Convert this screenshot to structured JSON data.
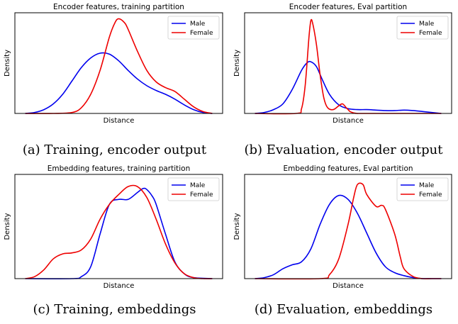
{
  "colors": {
    "male": "#0000ee",
    "female": "#ee0000"
  },
  "panels": [
    {
      "caption": "(a) Training, encoder output",
      "chart_data": {
        "type": "line",
        "title": "Encoder features, training partition",
        "xlabel": "Distance",
        "ylabel": "Density",
        "legend": "top-right",
        "xlim": [
          0,
          1
        ],
        "ylim": [
          0,
          1
        ],
        "series": [
          {
            "name": "Male",
            "color": "#0000ee",
            "x": [
              0.0,
              0.05,
              0.1,
              0.15,
              0.2,
              0.25,
              0.3,
              0.35,
              0.4,
              0.45,
              0.5,
              0.55,
              0.6,
              0.65,
              0.7,
              0.75,
              0.8,
              0.85,
              0.9,
              0.95,
              1.0
            ],
            "y": [
              0.0,
              0.01,
              0.04,
              0.1,
              0.2,
              0.34,
              0.48,
              0.58,
              0.63,
              0.62,
              0.55,
              0.45,
              0.36,
              0.29,
              0.24,
              0.2,
              0.15,
              0.09,
              0.04,
              0.01,
              0.0
            ]
          },
          {
            "name": "Female",
            "color": "#ee0000",
            "x": [
              0.0,
              0.15,
              0.25,
              0.3,
              0.35,
              0.4,
              0.45,
              0.48,
              0.5,
              0.53,
              0.55,
              0.6,
              0.65,
              0.7,
              0.75,
              0.8,
              0.85,
              0.9,
              0.95,
              1.0
            ],
            "y": [
              0.0,
              0.0,
              0.01,
              0.06,
              0.2,
              0.45,
              0.8,
              0.95,
              0.99,
              0.95,
              0.88,
              0.65,
              0.45,
              0.33,
              0.27,
              0.23,
              0.15,
              0.07,
              0.02,
              0.0
            ]
          }
        ]
      }
    },
    {
      "caption": "(b) Evaluation, encoder output",
      "chart_data": {
        "type": "line",
        "title": "Encoder features, Eval partition",
        "xlabel": "Distance",
        "ylabel": "Density",
        "legend": "top-right",
        "xlim": [
          0,
          1
        ],
        "ylim": [
          0,
          1
        ],
        "series": [
          {
            "name": "Male",
            "color": "#0000ee",
            "x": [
              0.0,
              0.05,
              0.1,
              0.15,
              0.2,
              0.25,
              0.28,
              0.3,
              0.33,
              0.36,
              0.4,
              0.45,
              0.5,
              0.55,
              0.6,
              0.65,
              0.7,
              0.75,
              0.8,
              0.85,
              0.9,
              0.95,
              1.0
            ],
            "y": [
              0.0,
              0.01,
              0.04,
              0.1,
              0.25,
              0.45,
              0.53,
              0.54,
              0.49,
              0.36,
              0.2,
              0.09,
              0.05,
              0.04,
              0.04,
              0.035,
              0.03,
              0.03,
              0.035,
              0.03,
              0.02,
              0.01,
              0.0
            ]
          },
          {
            "name": "Female",
            "color": "#ee0000",
            "x": [
              0.0,
              0.22,
              0.25,
              0.27,
              0.29,
              0.3,
              0.31,
              0.33,
              0.35,
              0.37,
              0.39,
              0.42,
              0.45,
              0.47,
              0.49,
              0.5,
              0.51,
              0.53,
              0.55,
              0.6,
              1.0
            ],
            "y": [
              0.0,
              0.0,
              0.05,
              0.3,
              0.8,
              0.97,
              0.94,
              0.72,
              0.4,
              0.16,
              0.06,
              0.04,
              0.08,
              0.1,
              0.06,
              0.04,
              0.02,
              0.005,
              0.0,
              0.0,
              0.0
            ]
          }
        ]
      }
    },
    {
      "caption": "(c) Training, embeddings",
      "chart_data": {
        "type": "line",
        "title": "Embedding features, training partition",
        "xlabel": "Distance",
        "ylabel": "Density",
        "legend": "top-right",
        "xlim": [
          0,
          1
        ],
        "ylim": [
          0,
          1
        ],
        "series": [
          {
            "name": "Male",
            "color": "#0000ee",
            "x": [
              0.0,
              0.25,
              0.3,
              0.35,
              0.4,
              0.45,
              0.5,
              0.55,
              0.6,
              0.63,
              0.65,
              0.68,
              0.7,
              0.75,
              0.8,
              0.85,
              0.9,
              1.0
            ],
            "y": [
              0.0,
              0.0,
              0.02,
              0.12,
              0.45,
              0.75,
              0.8,
              0.8,
              0.87,
              0.91,
              0.9,
              0.83,
              0.75,
              0.45,
              0.17,
              0.05,
              0.01,
              0.0
            ]
          },
          {
            "name": "Female",
            "color": "#ee0000",
            "x": [
              0.0,
              0.05,
              0.1,
              0.15,
              0.2,
              0.25,
              0.3,
              0.35,
              0.4,
              0.45,
              0.5,
              0.55,
              0.6,
              0.65,
              0.7,
              0.75,
              0.8,
              0.85,
              0.9,
              0.95,
              1.0
            ],
            "y": [
              0.0,
              0.02,
              0.09,
              0.2,
              0.25,
              0.26,
              0.29,
              0.4,
              0.6,
              0.75,
              0.85,
              0.93,
              0.93,
              0.82,
              0.6,
              0.35,
              0.16,
              0.05,
              0.01,
              0.0,
              0.0
            ]
          }
        ]
      }
    },
    {
      "caption": "(d) Evaluation, embeddings",
      "chart_data": {
        "type": "line",
        "title": "Embedding features, Eval partition",
        "xlabel": "Distance",
        "ylabel": "Density",
        "legend": "top-right",
        "xlim": [
          0,
          1
        ],
        "ylim": [
          0,
          1
        ],
        "series": [
          {
            "name": "Male",
            "color": "#0000ee",
            "x": [
              0.0,
              0.05,
              0.1,
              0.15,
              0.2,
              0.25,
              0.3,
              0.35,
              0.4,
              0.45,
              0.5,
              0.55,
              0.6,
              0.65,
              0.7,
              0.75,
              0.8,
              0.85,
              0.9,
              0.95,
              1.0
            ],
            "y": [
              0.0,
              0.01,
              0.04,
              0.1,
              0.14,
              0.17,
              0.3,
              0.55,
              0.75,
              0.84,
              0.8,
              0.66,
              0.46,
              0.26,
              0.12,
              0.06,
              0.03,
              0.01,
              0.0,
              0.0,
              0.0
            ]
          },
          {
            "name": "Female",
            "color": "#ee0000",
            "x": [
              0.0,
              0.35,
              0.4,
              0.45,
              0.5,
              0.53,
              0.55,
              0.58,
              0.6,
              0.65,
              0.68,
              0.7,
              0.75,
              0.78,
              0.8,
              0.85,
              0.9,
              0.95,
              1.0
            ],
            "y": [
              0.0,
              0.0,
              0.04,
              0.2,
              0.55,
              0.82,
              0.95,
              0.95,
              0.85,
              0.73,
              0.74,
              0.7,
              0.45,
              0.22,
              0.1,
              0.02,
              0.0,
              0.0,
              0.0
            ]
          }
        ]
      }
    }
  ]
}
